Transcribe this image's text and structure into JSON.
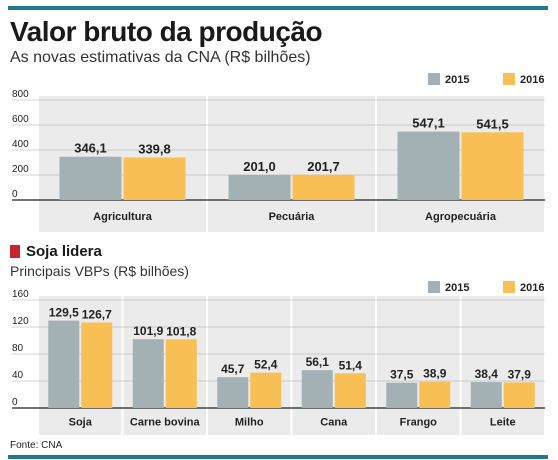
{
  "header": {
    "title": "Valor bruto da produção",
    "subtitle": "As novas estimativas da CNA (R$ bilhões)"
  },
  "section2": {
    "title": "Soja lidera",
    "subtitle": "Principais VBPs (R$ bilhões)"
  },
  "footer": {
    "source": "Fonte: CNA"
  },
  "colors": {
    "s2015": "#a3b1b5",
    "s2016": "#f8bf55",
    "accent": "#1f7a8c",
    "marker": "#c9252c",
    "panel": "#ebebeb"
  },
  "chart_data": [
    {
      "type": "bar",
      "categories": [
        "Agricultura",
        "Pecuária",
        "Agropecuária"
      ],
      "series": [
        {
          "name": "2015",
          "values": [
            346.1,
            201.0,
            547.1
          ],
          "labels": [
            "346,1",
            "201,0",
            "547,1"
          ]
        },
        {
          "name": "2016",
          "values": [
            339.8,
            201.7,
            541.5
          ],
          "labels": [
            "339,8",
            "201,7",
            "541,5"
          ]
        }
      ],
      "ylim": [
        0,
        800
      ],
      "yticks": [
        "0",
        "200",
        "400",
        "600",
        "800"
      ],
      "legend": "top-right"
    },
    {
      "type": "bar",
      "categories": [
        "Soja",
        "Carne bovina",
        "Milho",
        "Cana",
        "Frango",
        "Leite"
      ],
      "series": [
        {
          "name": "2015",
          "values": [
            129.5,
            101.9,
            45.7,
            56.1,
            37.5,
            38.4
          ],
          "labels": [
            "129,5",
            "101,9",
            "45,7",
            "56,1",
            "37,5",
            "38,4"
          ]
        },
        {
          "name": "2016",
          "values": [
            126.7,
            101.8,
            52.4,
            51.4,
            38.9,
            37.9
          ],
          "labels": [
            "126,7",
            "101,8",
            "52,4",
            "51,4",
            "38,9",
            "37,9"
          ]
        }
      ],
      "ylim": [
        0,
        160
      ],
      "yticks": [
        "0",
        "40",
        "80",
        "120",
        "160"
      ],
      "legend": "top-right"
    }
  ]
}
